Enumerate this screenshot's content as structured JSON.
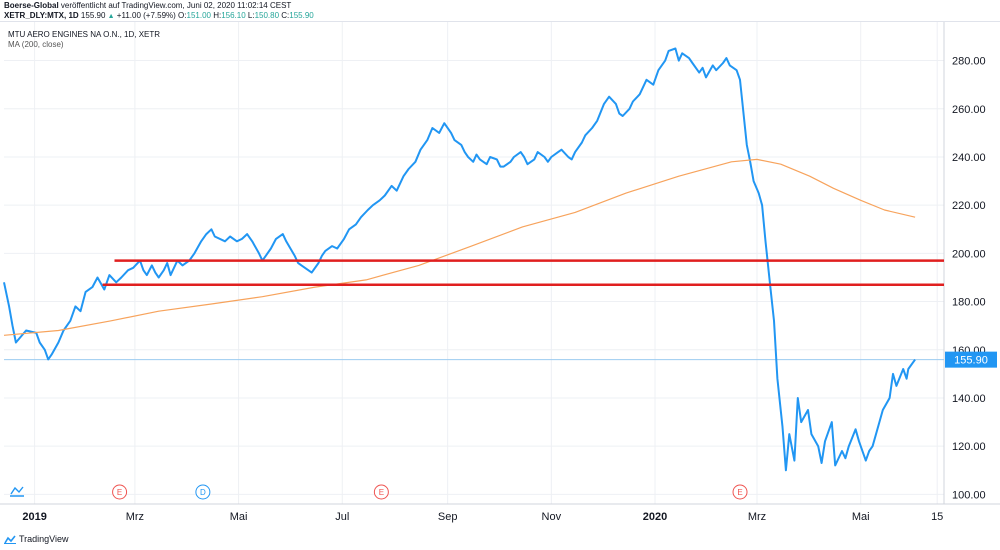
{
  "header": {
    "publisher": "Boerse-Global",
    "published_text": "veröffentlicht auf TradingView.com, Juni 02, 2020 11:02:14 CEST",
    "symbol": "XETR_DLY:MTX, 1D",
    "last": "155.90",
    "change": "+11.00 (+7.59%)",
    "open_label": "O:",
    "open": "151.00",
    "high_label": "H:",
    "high": "156.10",
    "low_label": "L:",
    "low": "150.80",
    "close_label": "C:",
    "close": "155.90"
  },
  "legend": {
    "instrument": "MTU AERO ENGINES NA O.N., 1D, XETR",
    "indicator": "MA (200, close)"
  },
  "footer": {
    "brand": "TradingView"
  },
  "colors": {
    "price": "#2196f3",
    "ma": "#f7a35c",
    "support": "#e01f1f",
    "last_price_badge": "#2196f3",
    "event_earnings": "#ef5350",
    "event_dividend": "#2196f3",
    "grid": "#eef0f4"
  },
  "chart_data": {
    "type": "line",
    "y_axis_ticks": [
      "100.00",
      "120.00",
      "140.00",
      "160.00",
      "180.00",
      "200.00",
      "220.00",
      "240.00",
      "260.00",
      "280.00"
    ],
    "ylim": [
      96,
      296
    ],
    "x_axis_ticks": [
      {
        "label": "2019",
        "date": "2019-01-01",
        "bold": true
      },
      {
        "label": "Mrz",
        "date": "2019-03-01"
      },
      {
        "label": "Mai",
        "date": "2019-05-01"
      },
      {
        "label": "Jul",
        "date": "2019-07-01"
      },
      {
        "label": "Sep",
        "date": "2019-09-01"
      },
      {
        "label": "Nov",
        "date": "2019-11-01"
      },
      {
        "label": "2020",
        "date": "2020-01-01",
        "bold": true
      },
      {
        "label": "Mrz",
        "date": "2020-03-01"
      },
      {
        "label": "Mai",
        "date": "2020-05-01"
      },
      {
        "label": "15",
        "date": "2020-06-15"
      }
    ],
    "xlim": [
      "2018-12-14",
      "2020-06-19"
    ],
    "last_price_label": "155.90",
    "last_price": 155.9,
    "horizontal_lines": [
      {
        "value": 197,
        "from": "2019-02-17",
        "to": "2020-06-19"
      },
      {
        "value": 187,
        "from": "2019-02-10",
        "to": "2020-06-19"
      }
    ],
    "events": [
      {
        "label": "E",
        "date": "2019-02-20",
        "kind": "earnings"
      },
      {
        "label": "D",
        "date": "2019-04-10",
        "kind": "dividend"
      },
      {
        "label": "E",
        "date": "2019-07-24",
        "kind": "earnings"
      },
      {
        "label": "E",
        "date": "2020-02-20",
        "kind": "earnings"
      }
    ],
    "series": [
      {
        "name": "MTU AERO ENGINES NA O.N.",
        "points": [
          [
            "2018-12-14",
            188
          ],
          [
            "2018-12-17",
            178
          ],
          [
            "2018-12-19",
            170
          ],
          [
            "2018-12-21",
            163
          ],
          [
            "2018-12-27",
            168
          ],
          [
            "2019-01-02",
            167
          ],
          [
            "2019-01-04",
            163
          ],
          [
            "2019-01-07",
            160
          ],
          [
            "2019-01-08",
            158
          ],
          [
            "2019-01-09",
            156
          ],
          [
            "2019-01-11",
            158
          ],
          [
            "2019-01-15",
            163
          ],
          [
            "2019-01-18",
            168
          ],
          [
            "2019-01-22",
            172
          ],
          [
            "2019-01-25",
            178
          ],
          [
            "2019-01-28",
            176
          ],
          [
            "2019-01-31",
            184
          ],
          [
            "2019-02-04",
            186
          ],
          [
            "2019-02-07",
            190
          ],
          [
            "2019-02-11",
            185
          ],
          [
            "2019-02-14",
            191
          ],
          [
            "2019-02-18",
            188
          ],
          [
            "2019-02-21",
            190
          ],
          [
            "2019-02-25",
            193
          ],
          [
            "2019-02-28",
            194
          ],
          [
            "2019-03-04",
            197
          ],
          [
            "2019-03-06",
            193
          ],
          [
            "2019-03-08",
            191
          ],
          [
            "2019-03-11",
            195
          ],
          [
            "2019-03-13",
            192
          ],
          [
            "2019-03-15",
            190
          ],
          [
            "2019-03-18",
            193
          ],
          [
            "2019-03-20",
            196
          ],
          [
            "2019-03-22",
            191
          ],
          [
            "2019-03-26",
            197
          ],
          [
            "2019-03-29",
            195
          ],
          [
            "2019-04-02",
            197
          ],
          [
            "2019-04-05",
            200
          ],
          [
            "2019-04-09",
            205
          ],
          [
            "2019-04-12",
            208
          ],
          [
            "2019-04-15",
            210
          ],
          [
            "2019-04-17",
            207
          ],
          [
            "2019-04-23",
            205
          ],
          [
            "2019-04-26",
            207
          ],
          [
            "2019-04-30",
            205
          ],
          [
            "2019-05-03",
            206
          ],
          [
            "2019-05-06",
            208
          ],
          [
            "2019-05-09",
            205
          ],
          [
            "2019-05-13",
            200
          ],
          [
            "2019-05-15",
            197
          ],
          [
            "2019-05-17",
            199
          ],
          [
            "2019-05-20",
            202
          ],
          [
            "2019-05-23",
            206
          ],
          [
            "2019-05-27",
            208
          ],
          [
            "2019-05-29",
            205
          ],
          [
            "2019-06-03",
            199
          ],
          [
            "2019-06-05",
            196
          ],
          [
            "2019-06-07",
            195
          ],
          [
            "2019-06-11",
            193
          ],
          [
            "2019-06-13",
            192
          ],
          [
            "2019-06-17",
            196
          ],
          [
            "2019-06-19",
            199
          ],
          [
            "2019-06-21",
            201
          ],
          [
            "2019-06-25",
            203
          ],
          [
            "2019-06-28",
            202
          ],
          [
            "2019-07-02",
            206
          ],
          [
            "2019-07-05",
            210
          ],
          [
            "2019-07-09",
            212
          ],
          [
            "2019-07-12",
            215
          ],
          [
            "2019-07-16",
            218
          ],
          [
            "2019-07-19",
            220
          ],
          [
            "2019-07-23",
            222
          ],
          [
            "2019-07-26",
            224
          ],
          [
            "2019-07-30",
            228
          ],
          [
            "2019-08-02",
            226
          ],
          [
            "2019-08-06",
            232
          ],
          [
            "2019-08-09",
            235
          ],
          [
            "2019-08-13",
            238
          ],
          [
            "2019-08-16",
            243
          ],
          [
            "2019-08-20",
            247
          ],
          [
            "2019-08-23",
            252
          ],
          [
            "2019-08-27",
            250
          ],
          [
            "2019-08-30",
            254
          ],
          [
            "2019-09-03",
            250
          ],
          [
            "2019-09-05",
            247
          ],
          [
            "2019-09-09",
            245
          ],
          [
            "2019-09-11",
            242
          ],
          [
            "2019-09-13",
            240
          ],
          [
            "2019-09-16",
            238
          ],
          [
            "2019-09-18",
            241
          ],
          [
            "2019-09-20",
            239
          ],
          [
            "2019-09-24",
            237
          ],
          [
            "2019-09-26",
            240
          ],
          [
            "2019-09-30",
            239
          ],
          [
            "2019-10-02",
            236
          ],
          [
            "2019-10-04",
            236
          ],
          [
            "2019-10-08",
            238
          ],
          [
            "2019-10-10",
            240
          ],
          [
            "2019-10-14",
            242
          ],
          [
            "2019-10-16",
            240
          ],
          [
            "2019-10-18",
            237
          ],
          [
            "2019-10-22",
            239
          ],
          [
            "2019-10-24",
            242
          ],
          [
            "2019-10-28",
            240
          ],
          [
            "2019-10-30",
            238
          ],
          [
            "2019-11-01",
            240
          ],
          [
            "2019-11-05",
            242
          ],
          [
            "2019-11-07",
            243
          ],
          [
            "2019-11-11",
            240
          ],
          [
            "2019-11-13",
            239
          ],
          [
            "2019-11-15",
            242
          ],
          [
            "2019-11-19",
            246
          ],
          [
            "2019-11-21",
            249
          ],
          [
            "2019-11-25",
            252
          ],
          [
            "2019-11-28",
            255
          ],
          [
            "2019-12-02",
            262
          ],
          [
            "2019-12-05",
            265
          ],
          [
            "2019-12-09",
            262
          ],
          [
            "2019-12-11",
            258
          ],
          [
            "2019-12-13",
            257
          ],
          [
            "2019-12-17",
            260
          ],
          [
            "2019-12-19",
            263
          ],
          [
            "2019-12-23",
            266
          ],
          [
            "2019-12-27",
            272
          ],
          [
            "2019-12-31",
            270
          ],
          [
            "2020-01-03",
            276
          ],
          [
            "2020-01-07",
            280
          ],
          [
            "2020-01-09",
            284
          ],
          [
            "2020-01-13",
            285
          ],
          [
            "2020-01-15",
            280
          ],
          [
            "2020-01-17",
            283
          ],
          [
            "2020-01-21",
            281
          ],
          [
            "2020-01-23",
            279
          ],
          [
            "2020-01-27",
            275
          ],
          [
            "2020-01-29",
            277
          ],
          [
            "2020-01-31",
            273
          ],
          [
            "2020-02-04",
            278
          ],
          [
            "2020-02-06",
            276
          ],
          [
            "2020-02-10",
            279
          ],
          [
            "2020-02-12",
            281
          ],
          [
            "2020-02-14",
            278
          ],
          [
            "2020-02-18",
            276
          ],
          [
            "2020-02-20",
            272
          ],
          [
            "2020-02-24",
            245
          ],
          [
            "2020-02-26",
            238
          ],
          [
            "2020-02-28",
            230
          ],
          [
            "2020-03-02",
            225
          ],
          [
            "2020-03-04",
            220
          ],
          [
            "2020-03-06",
            205
          ],
          [
            "2020-03-09",
            185
          ],
          [
            "2020-03-11",
            172
          ],
          [
            "2020-03-13",
            148
          ],
          [
            "2020-03-16",
            128
          ],
          [
            "2020-03-18",
            110
          ],
          [
            "2020-03-20",
            125
          ],
          [
            "2020-03-23",
            114
          ],
          [
            "2020-03-25",
            140
          ],
          [
            "2020-03-27",
            130
          ],
          [
            "2020-03-31",
            135
          ],
          [
            "2020-04-02",
            125
          ],
          [
            "2020-04-06",
            120
          ],
          [
            "2020-04-08",
            113
          ],
          [
            "2020-04-10",
            122
          ],
          [
            "2020-04-14",
            130
          ],
          [
            "2020-04-16",
            112
          ],
          [
            "2020-04-20",
            118
          ],
          [
            "2020-04-22",
            115
          ],
          [
            "2020-04-24",
            120
          ],
          [
            "2020-04-28",
            127
          ],
          [
            "2020-04-30",
            122
          ],
          [
            "2020-05-04",
            114
          ],
          [
            "2020-05-06",
            118
          ],
          [
            "2020-05-08",
            120
          ],
          [
            "2020-05-12",
            130
          ],
          [
            "2020-05-14",
            135
          ],
          [
            "2020-05-18",
            140
          ],
          [
            "2020-05-20",
            150
          ],
          [
            "2020-05-22",
            145
          ],
          [
            "2020-05-26",
            152
          ],
          [
            "2020-05-28",
            148
          ],
          [
            "2020-05-29",
            152
          ],
          [
            "2020-06-02",
            155.9
          ]
        ]
      },
      {
        "name": "MA (200, close)",
        "points": [
          [
            "2018-12-14",
            166
          ],
          [
            "2019-01-15",
            168
          ],
          [
            "2019-02-15",
            172
          ],
          [
            "2019-03-15",
            176
          ],
          [
            "2019-04-15",
            179
          ],
          [
            "2019-05-15",
            182
          ],
          [
            "2019-06-15",
            186
          ],
          [
            "2019-07-15",
            189
          ],
          [
            "2019-08-15",
            195
          ],
          [
            "2019-09-15",
            203
          ],
          [
            "2019-10-15",
            211
          ],
          [
            "2019-11-15",
            217
          ],
          [
            "2019-12-15",
            225
          ],
          [
            "2020-01-15",
            232
          ],
          [
            "2020-02-15",
            238
          ],
          [
            "2020-03-01",
            239
          ],
          [
            "2020-03-15",
            237
          ],
          [
            "2020-04-01",
            232
          ],
          [
            "2020-04-15",
            227
          ],
          [
            "2020-05-01",
            222
          ],
          [
            "2020-05-15",
            218
          ],
          [
            "2020-06-02",
            215
          ]
        ]
      }
    ]
  }
}
